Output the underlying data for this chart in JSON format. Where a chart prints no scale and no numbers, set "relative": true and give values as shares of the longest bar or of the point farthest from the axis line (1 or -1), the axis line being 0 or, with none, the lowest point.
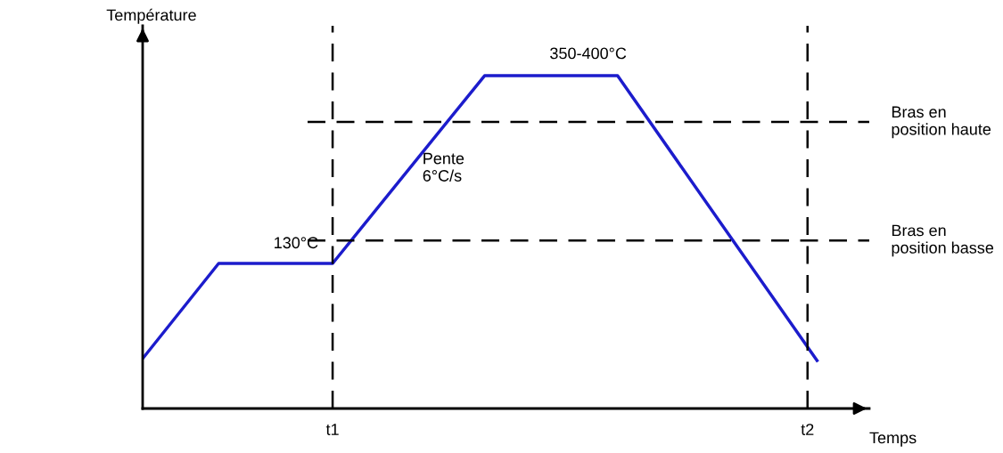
{
  "chart_data": {
    "type": "line",
    "relative": true,
    "xlabel": "Temps",
    "ylabel": "Température",
    "categories": [
      null,
      null,
      null,
      null,
      null,
      null,
      null,
      null,
      null,
      null,
      null,
      null,
      null,
      null,
      null,
      null,
      null,
      null,
      null,
      null,
      "t1",
      null,
      null,
      null,
      null,
      null,
      null,
      null,
      null,
      null,
      null,
      null,
      null,
      null,
      null,
      null,
      null,
      null,
      null,
      null,
      null,
      null,
      null,
      null,
      null,
      null,
      null,
      null,
      null,
      null,
      null,
      null,
      null,
      null,
      null,
      null,
      null,
      null,
      null,
      null,
      null,
      null,
      null,
      null,
      null,
      null,
      null,
      null,
      null,
      null,
      "t2",
      null
    ],
    "series": [
      {
        "color": "#1c1ccc",
        "values": [
          0.15,
          null,
          null,
          null,
          null,
          null,
          null,
          null,
          0.436,
          null,
          null,
          null,
          null,
          null,
          null,
          null,
          null,
          null,
          null,
          null,
          0.436,
          null,
          null,
          null,
          null,
          null,
          null,
          null,
          null,
          null,
          null,
          null,
          null,
          null,
          null,
          null,
          1,
          null,
          null,
          null,
          null,
          null,
          null,
          null,
          null,
          null,
          null,
          null,
          null,
          null,
          1,
          null,
          null,
          null,
          null,
          null,
          null,
          null,
          null,
          null,
          null,
          null,
          null,
          null,
          null,
          null,
          null,
          null,
          null,
          null,
          null,
          0.144
        ]
      }
    ],
    "ref_lines": [
      {
        "axis": "x",
        "value": "t1",
        "color": "#000000",
        "line_style": "dashed"
      },
      {
        "axis": "x",
        "value": "t2",
        "color": "#000000",
        "line_style": "dashed"
      },
      {
        "axis": "y",
        "value": 0.861,
        "label": "Bras en\nposition haute",
        "color": "#000000",
        "line_style": "dashed"
      },
      {
        "axis": "y",
        "value": 0.505,
        "label": "Bras en\nposition basse",
        "color": "#000000",
        "line_style": "dashed"
      }
    ],
    "annotations": [
      "130°C",
      "350-400°C",
      "Pente\n6°C/s"
    ],
    "grid": false,
    "legend": false,
    "marker": "none",
    "line_style": "solid"
  }
}
